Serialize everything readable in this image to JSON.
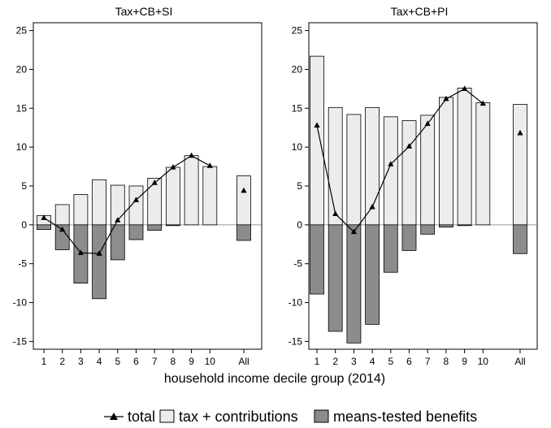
{
  "figure": {
    "xlabel": "household income decile group (2014)"
  },
  "legend": {
    "items": [
      {
        "label": "total",
        "kind": "line-triangle",
        "color": "#000000"
      },
      {
        "label": "tax + contributions",
        "kind": "box",
        "color": "#ececec"
      },
      {
        "label": "means-tested benefits",
        "kind": "box",
        "color": "#8c8c8c"
      }
    ]
  },
  "chart_data": [
    {
      "type": "bar",
      "title": "Tax+CB+SI",
      "categories": [
        "1",
        "2",
        "3",
        "4",
        "5",
        "6",
        "7",
        "8",
        "9",
        "10",
        "All"
      ],
      "ylim": [
        -16,
        26
      ],
      "yticks": [
        -15,
        -10,
        -5,
        0,
        5,
        10,
        15,
        20,
        25
      ],
      "series": [
        {
          "name": "tax + contributions",
          "kind": "bar",
          "color": "#ececec",
          "values": [
            1.2,
            2.6,
            3.9,
            5.8,
            5.1,
            5.0,
            6.0,
            7.4,
            8.9,
            7.5,
            6.3
          ]
        },
        {
          "name": "means-tested benefits",
          "kind": "bar",
          "color": "#8c8c8c",
          "values": [
            -0.6,
            -3.2,
            -7.5,
            -9.5,
            -4.5,
            -1.9,
            -0.7,
            -0.1,
            0.0,
            0.0,
            -2.0
          ]
        },
        {
          "name": "total",
          "kind": "line",
          "color": "#000000",
          "values": [
            0.9,
            -0.6,
            -3.6,
            -3.7,
            0.6,
            3.2,
            5.4,
            7.4,
            8.9,
            7.6,
            4.4
          ],
          "connect_count": 10
        }
      ]
    },
    {
      "type": "bar",
      "title": "Tax+CB+PI",
      "categories": [
        "1",
        "2",
        "3",
        "4",
        "5",
        "6",
        "7",
        "8",
        "9",
        "10",
        "All"
      ],
      "ylim": [
        -16,
        26
      ],
      "yticks": [
        -15,
        -10,
        -5,
        0,
        5,
        10,
        15,
        20,
        25
      ],
      "series": [
        {
          "name": "tax + contributions",
          "kind": "bar",
          "color": "#ececec",
          "values": [
            21.7,
            15.1,
            14.2,
            15.1,
            13.9,
            13.4,
            14.1,
            16.4,
            17.6,
            15.7,
            15.5
          ]
        },
        {
          "name": "means-tested benefits",
          "kind": "bar",
          "color": "#8c8c8c",
          "values": [
            -8.9,
            -13.7,
            -15.2,
            -12.8,
            -6.1,
            -3.3,
            -1.2,
            -0.3,
            -0.1,
            0.0,
            -3.7
          ]
        },
        {
          "name": "total",
          "kind": "line",
          "color": "#000000",
          "values": [
            12.8,
            1.4,
            -0.9,
            2.3,
            7.8,
            10.1,
            13.0,
            16.2,
            17.5,
            15.6,
            11.8
          ],
          "connect_count": 10
        }
      ]
    }
  ]
}
